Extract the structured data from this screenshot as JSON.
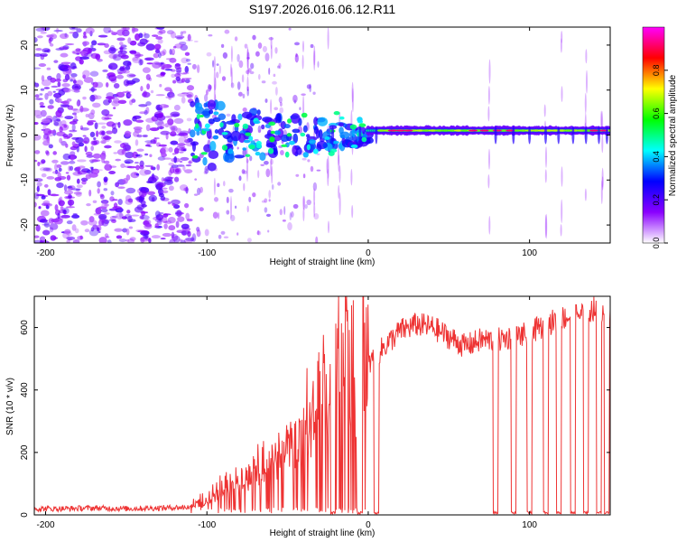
{
  "figure": {
    "title": "S197.2026.016.06.12.R11"
  },
  "chart_data": [
    {
      "type": "heatmap",
      "title": "S197.2026.016.06.12.R11",
      "xlabel": "Height of straight line (km)",
      "ylabel": "Frequency (Hz)",
      "xlim": [
        -207,
        150
      ],
      "ylim": [
        -24,
        24
      ],
      "xticks": [
        -200,
        -100,
        0,
        100
      ],
      "yticks": [
        -20,
        -10,
        0,
        10,
        20
      ],
      "colorbar": {
        "label": "Normalized spectral amplitude",
        "range": [
          0,
          1
        ],
        "ticks": [
          "0.0",
          "0.2",
          "0.4",
          "0.6",
          "0.8"
        ],
        "colors": [
          "#ffffff",
          "#8a00ff",
          "#0000ff",
          "#00ffff",
          "#00ff00",
          "#ffff00",
          "#ff0000",
          "#ff00ff"
        ]
      },
      "features": [
        {
          "region": "noise",
          "x_range": [
            -207,
            -110
          ],
          "y_range": [
            -24,
            24
          ],
          "amplitude": "low"
        },
        {
          "region": "scattered blobs",
          "x_range": [
            -110,
            0
          ],
          "y_center": 0,
          "amplitude": "medium"
        },
        {
          "region": "carrier band",
          "x_range": [
            0,
            150
          ],
          "y_center": 1.0,
          "amplitude": "high"
        }
      ]
    },
    {
      "type": "line",
      "xlabel": "Height of straight line (km)",
      "ylabel": "SNR (10 * v/v)",
      "xlim": [
        -207,
        150
      ],
      "ylim": [
        0,
        700
      ],
      "xticks": [
        -200,
        -100,
        0,
        100
      ],
      "yticks": [
        0,
        200,
        400,
        600
      ],
      "color": "#ee3333",
      "x": [
        -207,
        -190,
        -170,
        -150,
        -130,
        -110,
        -100,
        -90,
        -80,
        -70,
        -60,
        -50,
        -40,
        -30,
        -20,
        -10,
        0,
        10,
        20,
        30,
        40,
        50,
        60,
        70,
        80,
        90,
        100,
        110,
        120,
        130,
        140,
        150
      ],
      "y": [
        20,
        20,
        22,
        20,
        22,
        25,
        40,
        70,
        100,
        110,
        140,
        180,
        220,
        300,
        380,
        420,
        480,
        540,
        590,
        610,
        600,
        570,
        540,
        560,
        560,
        570,
        580,
        610,
        630,
        640,
        660,
        650
      ],
      "dropouts_x": [
        -22,
        -5,
        5,
        79,
        90,
        100,
        110,
        118,
        127,
        135,
        143,
        148
      ]
    }
  ]
}
